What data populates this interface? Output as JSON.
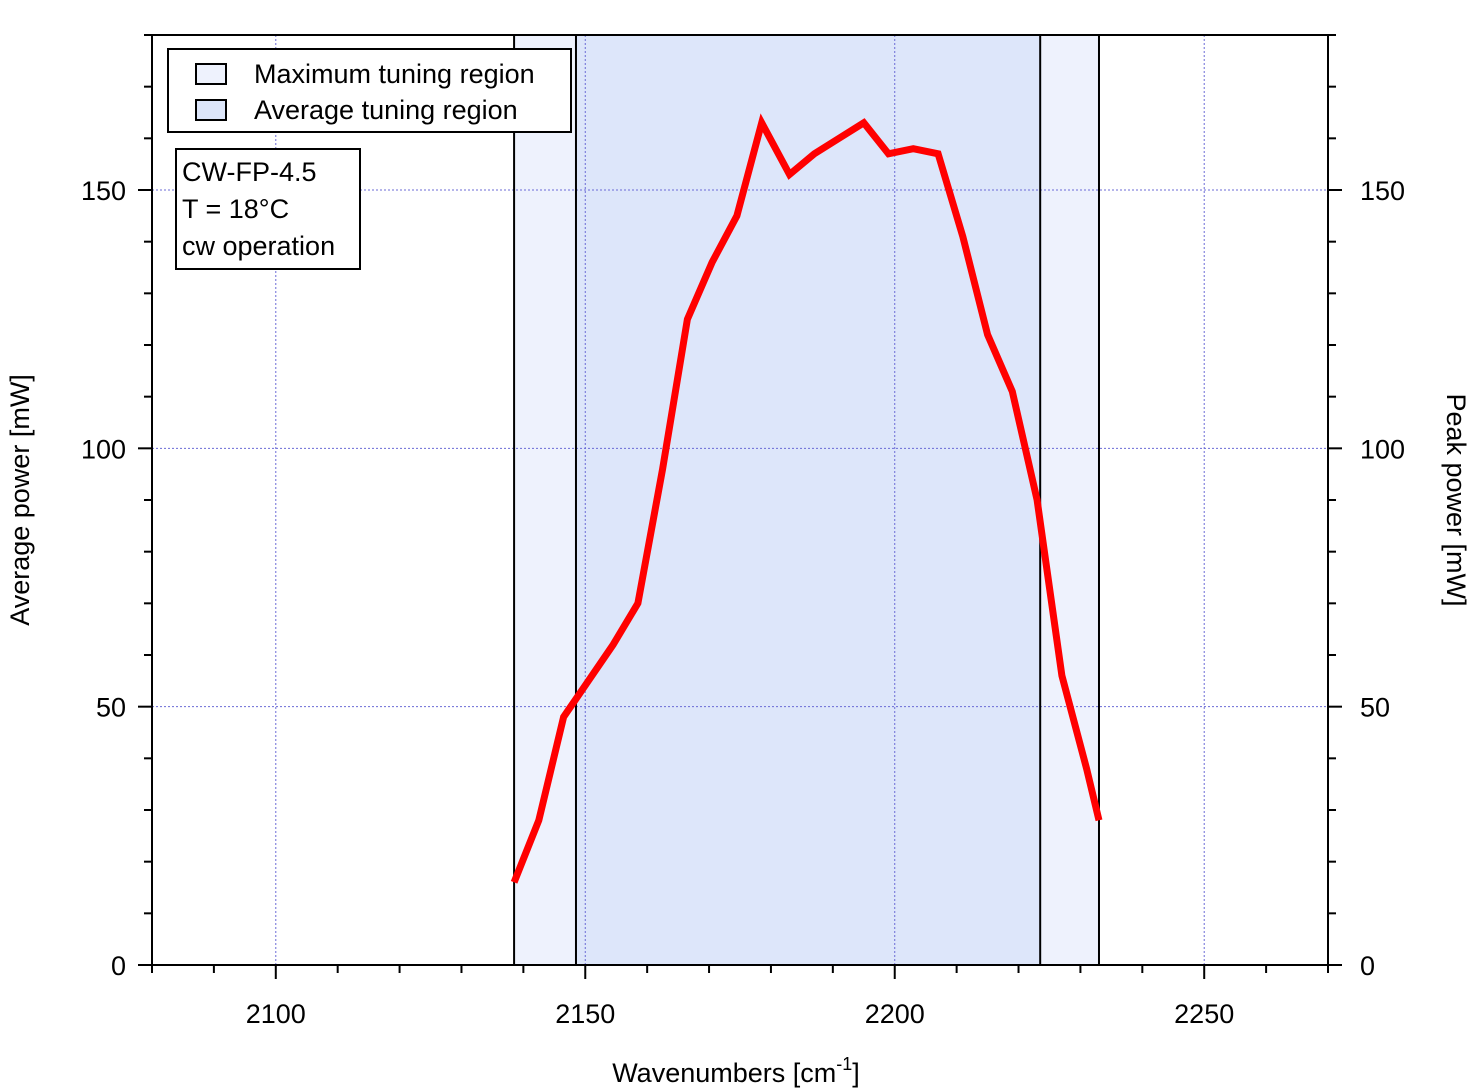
{
  "chart_data": {
    "type": "line",
    "xlabel": "Wavenumbers [cm",
    "xlabel_sup": "-1",
    "xlabel_suffix": "]",
    "ylabel": "Average power [mW]",
    "y2label": "Peak power [mW]",
    "xlim": [
      2080,
      2270
    ],
    "ylim": [
      0,
      180
    ],
    "y2lim": [
      0,
      180
    ],
    "xticks": [
      2100,
      2150,
      2200,
      2250
    ],
    "yticks": [
      0,
      50,
      100,
      150
    ],
    "y2ticks": [
      0,
      50,
      100,
      150
    ],
    "grid": true,
    "regions": [
      {
        "name": "Maximum tuning region",
        "x0": 2138.5,
        "x1": 2233,
        "color": "#eef2fd"
      },
      {
        "name": "Average tuning region",
        "x0": 2148.5,
        "x1": 2223.5,
        "color": "#dde6fa"
      }
    ],
    "series": [
      {
        "color": "#ff0000",
        "x": [
          2138.5,
          2142.5,
          2146.5,
          2150.5,
          2154.5,
          2158.5,
          2162.5,
          2166.5,
          2170.5,
          2174.5,
          2178.5,
          2183,
          2187,
          2191,
          2195,
          2199,
          2203,
          2207,
          2211,
          2215,
          2219,
          2223,
          2227,
          2231,
          2233
        ],
        "y": [
          16,
          28,
          48,
          55,
          62,
          70,
          96,
          125,
          136,
          145,
          163,
          153,
          157,
          160,
          163,
          157,
          158,
          157,
          141,
          122,
          111,
          90,
          56,
          38,
          28
        ]
      }
    ],
    "legend": {
      "placement": "top-left",
      "entries": [
        "Maximum tuning region",
        "Average tuning region"
      ]
    },
    "annotation": {
      "lines": [
        "CW-FP-4.5",
        "T = 18°C",
        "cw operation"
      ]
    }
  }
}
